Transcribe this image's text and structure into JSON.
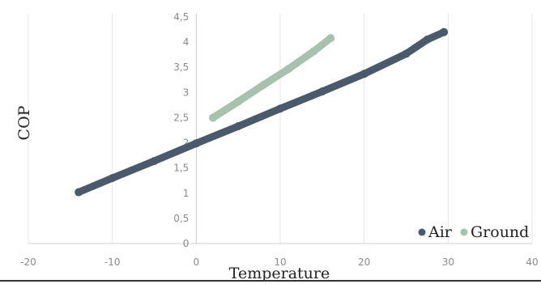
{
  "chart_data": {
    "type": "scatter",
    "xlabel": "Temperature",
    "ylabel": "COP",
    "xlim": [
      -20,
      40
    ],
    "ylim": [
      0,
      4.5
    ],
    "x_ticks": [
      "-20",
      "-10",
      "0",
      "10",
      "20",
      "30",
      "40"
    ],
    "y_ticks": [
      "0",
      "0,5",
      "1",
      "1,5",
      "2",
      "2,5",
      "3",
      "3,5",
      "4",
      "4,5"
    ],
    "grid": "vertical",
    "legend_position": "bottom-right",
    "series": [
      {
        "name": "Air",
        "color": "#4a5a6b",
        "points": [
          [
            -14,
            1.02
          ],
          [
            -10,
            1.3
          ],
          [
            -5,
            1.64
          ],
          [
            0,
            1.99
          ],
          [
            5,
            2.33
          ],
          [
            10,
            2.68
          ],
          [
            15,
            3.02
          ],
          [
            20,
            3.37
          ],
          [
            25,
            3.77
          ],
          [
            27.5,
            4.05
          ],
          [
            29.5,
            4.2
          ]
        ]
      },
      {
        "name": "Ground",
        "color": "#a6c1ae",
        "points": [
          [
            2,
            2.5
          ],
          [
            5,
            2.82
          ],
          [
            8,
            3.15
          ],
          [
            11,
            3.47
          ],
          [
            14,
            3.82
          ],
          [
            16,
            4.08
          ]
        ]
      }
    ]
  }
}
